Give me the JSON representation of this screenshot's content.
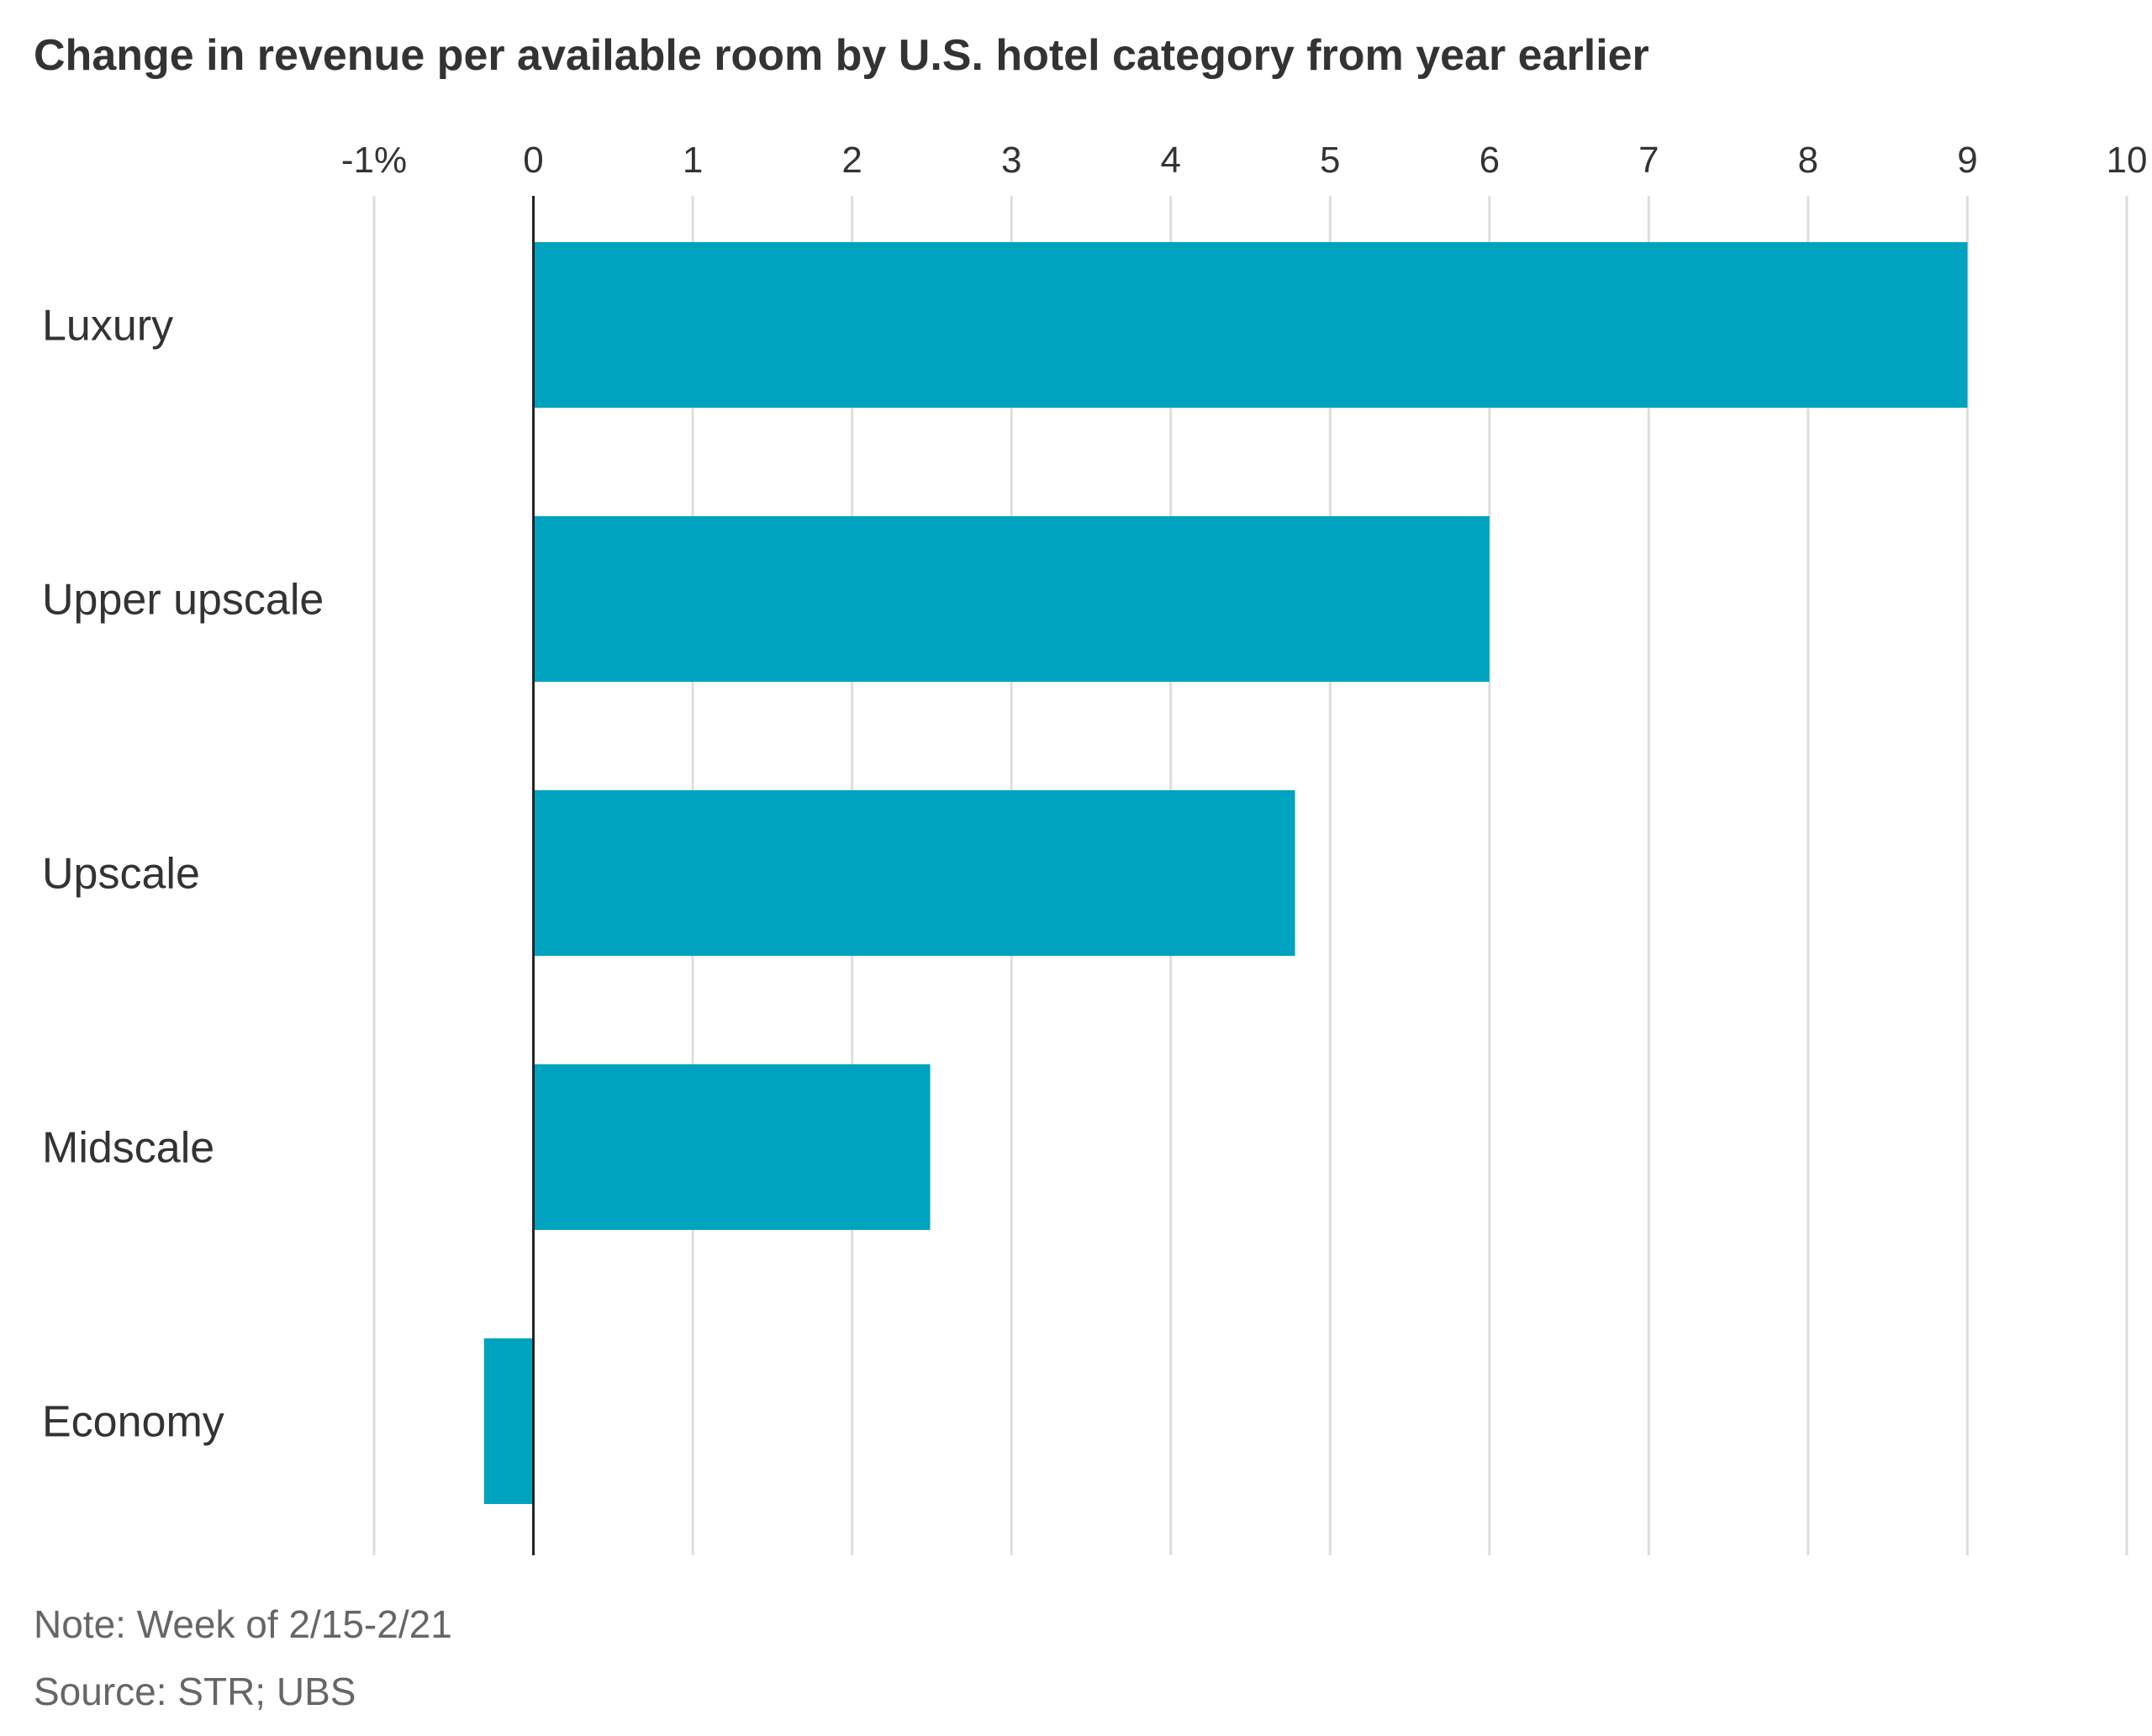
{
  "chart_data": {
    "type": "bar",
    "orientation": "horizontal",
    "title": "Change in revenue per available room by U.S. hotel category from year earlier",
    "categories": [
      "Luxury",
      "Upper upscale",
      "Upscale",
      "Midscale",
      "Economy"
    ],
    "values": [
      9.0,
      6.0,
      4.78,
      2.49,
      -0.31
    ],
    "x_ticks": [
      -1,
      0,
      1,
      2,
      3,
      4,
      5,
      6,
      7,
      8,
      9,
      10
    ],
    "x_tick_labels": [
      "-1%",
      "0",
      "1",
      "2",
      "3",
      "4",
      "5",
      "6",
      "7",
      "8",
      "9",
      "10"
    ],
    "xlim": [
      -1,
      10
    ],
    "xlabel": "",
    "ylabel": "",
    "grid": true,
    "note": "Note: Week of 2/15-2/21",
    "source": "Source: STR; UBS"
  },
  "colors": {
    "bar": "#00a3bf",
    "grid": "#dddddd",
    "zero_line": "#222222",
    "text": "#333333",
    "footnote": "#666666"
  }
}
